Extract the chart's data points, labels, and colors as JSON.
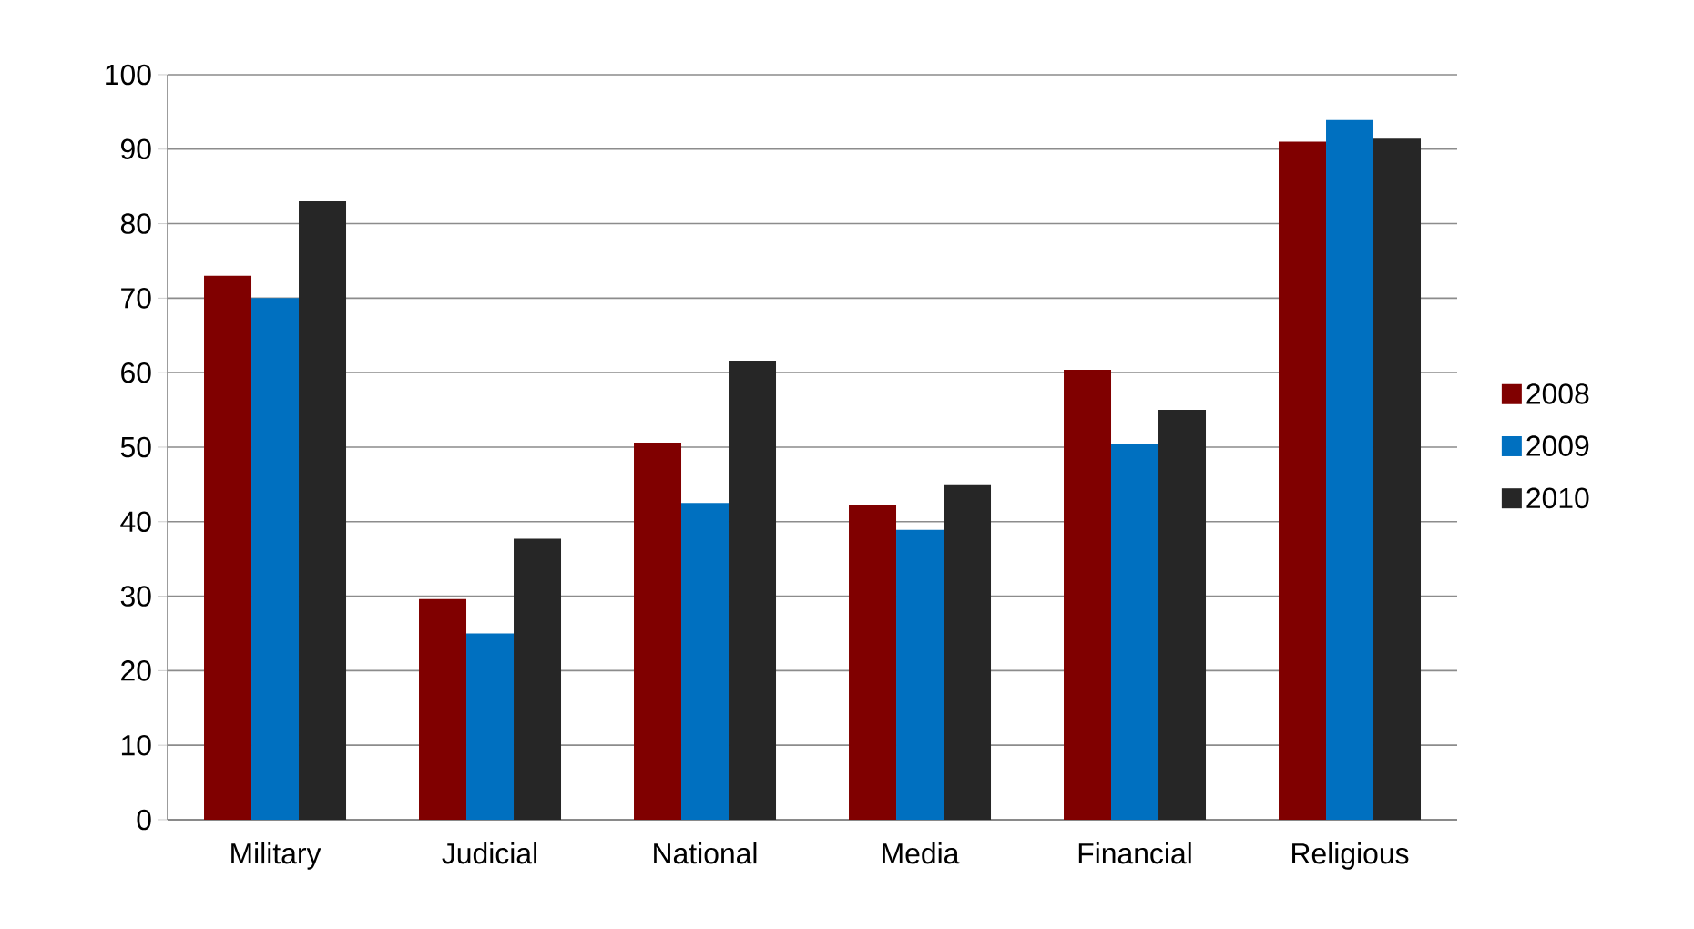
{
  "chart_data": {
    "type": "bar",
    "categories": [
      "Military",
      "Judicial",
      "National",
      "Media",
      "Financial",
      "Religious"
    ],
    "series": [
      {
        "name": "2008",
        "color": "#800000",
        "values": [
          73,
          29.6,
          50.6,
          42.3,
          60.4,
          91
        ]
      },
      {
        "name": "2009",
        "color": "#0070c0",
        "values": [
          70,
          25,
          42.5,
          38.9,
          50.4,
          93.9
        ]
      },
      {
        "name": "2010",
        "color": "#262626",
        "values": [
          83,
          37.7,
          61.6,
          45,
          55,
          91.4
        ]
      }
    ],
    "ylim": [
      0,
      100
    ],
    "yticks": [
      0,
      10,
      20,
      30,
      40,
      50,
      60,
      70,
      80,
      90,
      100
    ],
    "grid": "y",
    "legend": "right"
  }
}
